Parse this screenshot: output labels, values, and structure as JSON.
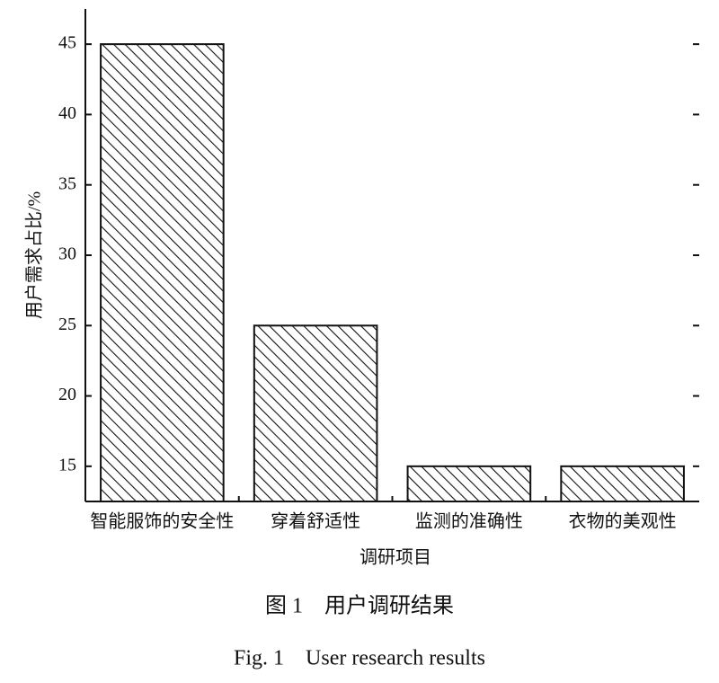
{
  "chart_data": {
    "type": "bar",
    "x_label": "调研项目",
    "y_label": "用户需求占比/%",
    "categories": [
      "智能服饰的安全性",
      "穿着舒适性",
      "监测的准确性",
      "衣物的美观性"
    ],
    "values": [
      45,
      25,
      15,
      15
    ],
    "color": "#111111",
    "ylim": [
      12.5,
      47.5
    ],
    "yticks": [
      15,
      20,
      25,
      30,
      35,
      40,
      45
    ],
    "caption_cn": "图 1　用户调研结果",
    "caption_en": "Fig. 1　User research results"
  }
}
